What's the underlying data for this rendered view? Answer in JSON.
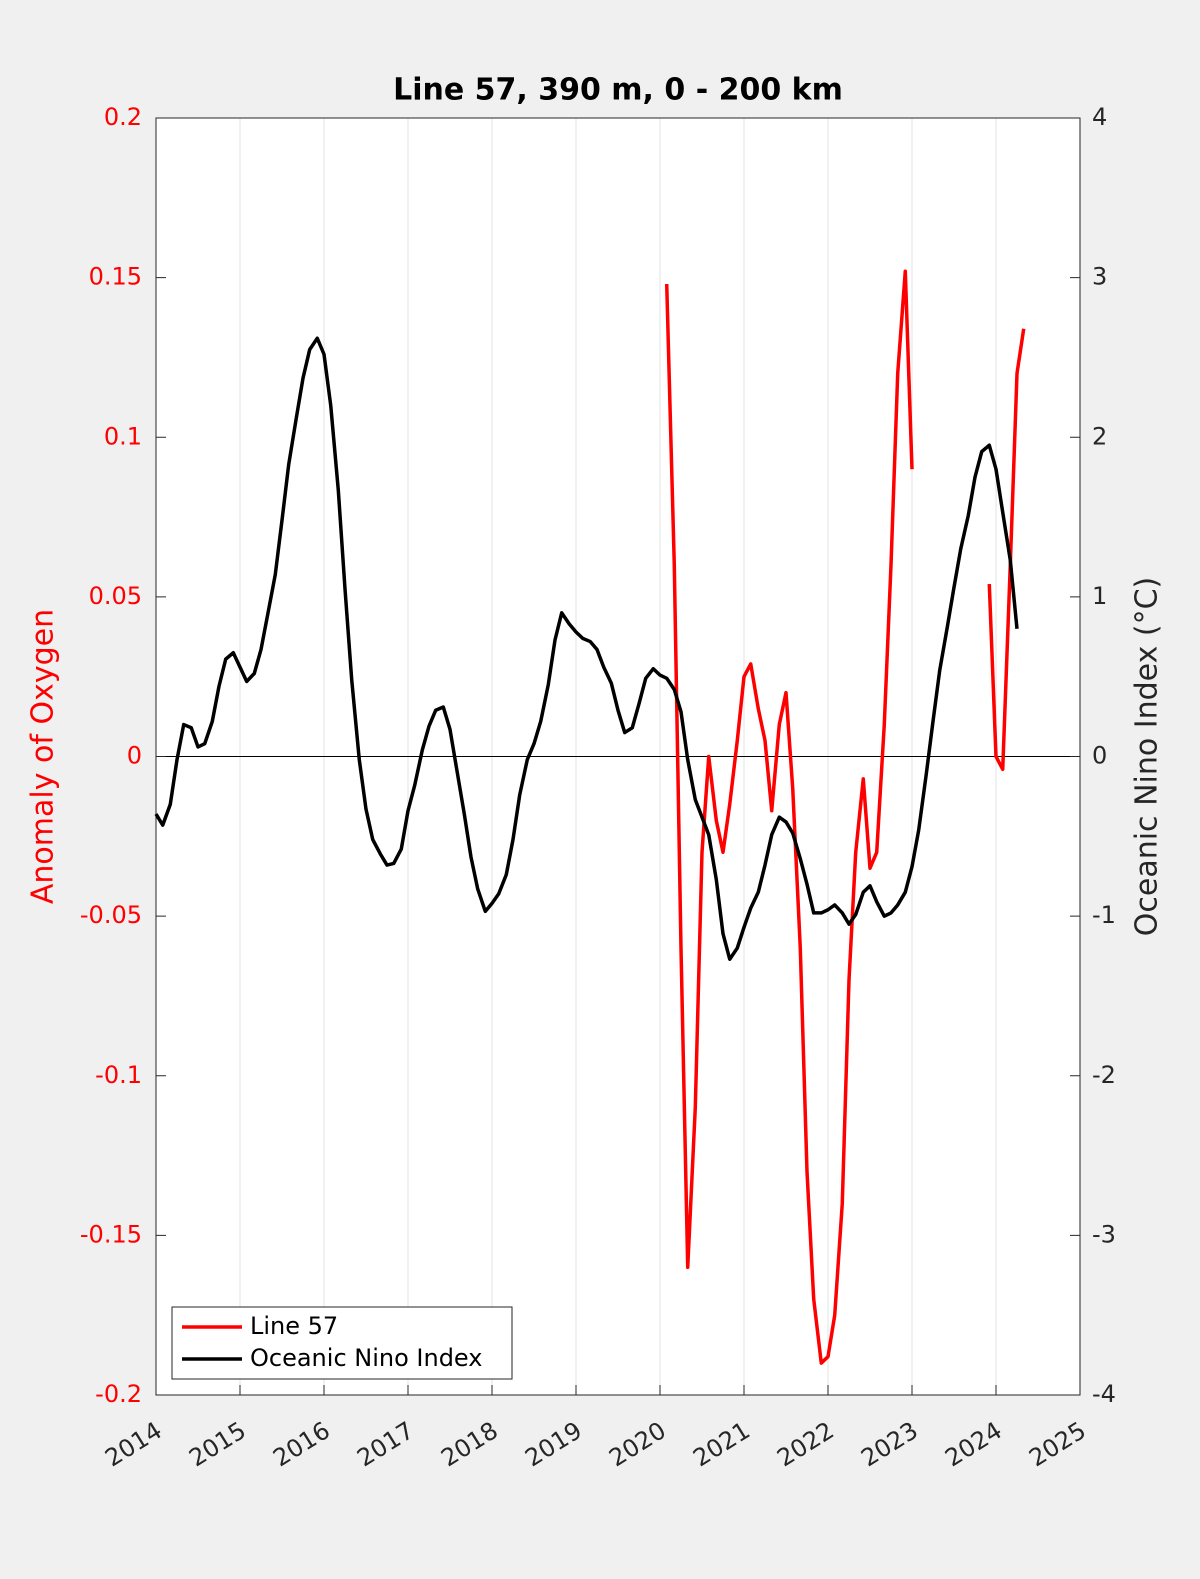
{
  "chart_data": {
    "type": "line",
    "title": "Line 57, 390 m, 0 - 200 km",
    "ylabel": "Anomaly of Oxygen",
    "y2label": "Oceanic Nino Index (°C)",
    "xlim": [
      2014,
      2025
    ],
    "xticks": [
      2014,
      2015,
      2016,
      2017,
      2018,
      2019,
      2020,
      2021,
      2022,
      2023,
      2024,
      2025
    ],
    "ylim": [
      -0.2,
      0.2
    ],
    "yticks": [
      -0.2,
      -0.15,
      -0.1,
      -0.05,
      0,
      0.05,
      0.1,
      0.15,
      0.2
    ],
    "y2lim": [
      -4,
      4
    ],
    "y2ticks": [
      -4,
      -3,
      -2,
      -1,
      0,
      1,
      2,
      3,
      4
    ],
    "grid": "x",
    "zero_line": true,
    "legend": "southwest",
    "ylabel_color": "#ff0000",
    "x": [
      2014.0,
      2014.08,
      2014.17,
      2014.25,
      2014.33,
      2014.42,
      2014.5,
      2014.58,
      2014.67,
      2014.75,
      2014.83,
      2014.92,
      2015.0,
      2015.08,
      2015.17,
      2015.25,
      2015.33,
      2015.42,
      2015.5,
      2015.58,
      2015.67,
      2015.75,
      2015.83,
      2015.92,
      2016.0,
      2016.08,
      2016.17,
      2016.25,
      2016.33,
      2016.42,
      2016.5,
      2016.58,
      2016.67,
      2016.75,
      2016.83,
      2016.92,
      2017.0,
      2017.08,
      2017.17,
      2017.25,
      2017.33,
      2017.42,
      2017.5,
      2017.58,
      2017.67,
      2017.75,
      2017.83,
      2017.92,
      2018.0,
      2018.08,
      2018.17,
      2018.25,
      2018.33,
      2018.42,
      2018.5,
      2018.58,
      2018.67,
      2018.75,
      2018.83,
      2018.92,
      2019.0,
      2019.08,
      2019.17,
      2019.25,
      2019.33,
      2019.42,
      2019.5,
      2019.58,
      2019.67,
      2019.75,
      2019.83,
      2019.92,
      2020.0,
      2020.08,
      2020.17,
      2020.25,
      2020.33,
      2020.42,
      2020.5,
      2020.58,
      2020.67,
      2020.75,
      2020.83,
      2020.92,
      2021.0,
      2021.08,
      2021.17,
      2021.25,
      2021.33,
      2021.42,
      2021.5,
      2021.58,
      2021.67,
      2021.75,
      2021.83,
      2021.92,
      2022.0,
      2022.08,
      2022.17,
      2022.25,
      2022.33,
      2022.42,
      2022.5,
      2022.58,
      2022.67,
      2022.75,
      2022.83,
      2022.92,
      2023.0,
      2023.08,
      2023.17,
      2023.25,
      2023.33,
      2023.42,
      2023.5,
      2023.58,
      2023.67,
      2023.75,
      2023.83,
      2023.92,
      2024.0,
      2024.08,
      2024.17,
      2024.25,
      2024.33
    ],
    "series": [
      {
        "name": "Line 57",
        "color": "#ff0000",
        "axis": "y",
        "values": [
          null,
          null,
          null,
          null,
          null,
          null,
          null,
          null,
          null,
          null,
          null,
          null,
          null,
          null,
          null,
          null,
          null,
          null,
          null,
          null,
          null,
          null,
          null,
          null,
          null,
          null,
          null,
          null,
          null,
          null,
          null,
          null,
          null,
          null,
          null,
          null,
          null,
          null,
          null,
          null,
          null,
          null,
          null,
          null,
          null,
          null,
          null,
          null,
          null,
          null,
          null,
          null,
          null,
          null,
          null,
          null,
          null,
          null,
          null,
          null,
          null,
          null,
          null,
          null,
          null,
          null,
          null,
          null,
          null,
          null,
          null,
          null,
          null,
          0.148,
          0.06,
          -0.06,
          -0.16,
          -0.11,
          -0.03,
          0.0,
          -0.02,
          -0.03,
          -0.015,
          0.005,
          0.025,
          0.029,
          0.015,
          0.005,
          -0.017,
          0.01,
          0.02,
          -0.01,
          -0.06,
          -0.13,
          -0.17,
          -0.19,
          -0.188,
          -0.175,
          -0.14,
          -0.07,
          -0.03,
          -0.007,
          -0.035,
          -0.03,
          0.01,
          0.06,
          0.12,
          0.152,
          0.09,
          null,
          null,
          null,
          null,
          null,
          null,
          null,
          null,
          null,
          null,
          0.054,
          0.0,
          -0.004,
          0.06,
          0.12,
          0.134
        ]
      },
      {
        "name": "Oceanic Nino Index",
        "color": "#000000",
        "axis": "y2",
        "values": [
          -0.36,
          -0.43,
          -0.3,
          -0.02,
          0.2,
          0.18,
          0.06,
          0.08,
          0.22,
          0.44,
          0.61,
          0.65,
          0.56,
          0.47,
          0.52,
          0.67,
          0.89,
          1.14,
          1.48,
          1.83,
          2.12,
          2.37,
          2.55,
          2.62,
          2.52,
          2.2,
          1.67,
          1.05,
          0.48,
          -0.02,
          -0.33,
          -0.52,
          -0.61,
          -0.68,
          -0.67,
          -0.58,
          -0.34,
          -0.18,
          0.04,
          0.19,
          0.29,
          0.31,
          0.17,
          -0.08,
          -0.36,
          -0.63,
          -0.83,
          -0.97,
          -0.92,
          -0.86,
          -0.74,
          -0.52,
          -0.24,
          -0.02,
          0.08,
          0.22,
          0.45,
          0.73,
          0.9,
          0.83,
          0.78,
          0.74,
          0.72,
          0.67,
          0.56,
          0.46,
          0.29,
          0.15,
          0.18,
          0.33,
          0.49,
          0.55,
          0.51,
          0.49,
          0.42,
          0.28,
          -0.02,
          -0.27,
          -0.38,
          -0.49,
          -0.77,
          -1.11,
          -1.27,
          -1.2,
          -1.07,
          -0.95,
          -0.85,
          -0.68,
          -0.49,
          -0.38,
          -0.41,
          -0.48,
          -0.64,
          -0.8,
          -0.98,
          -0.98,
          -0.96,
          -0.93,
          -0.98,
          -1.05,
          -0.99,
          -0.85,
          -0.81,
          -0.91,
          -1.0,
          -0.98,
          -0.93,
          -0.85,
          -0.69,
          -0.46,
          -0.11,
          0.22,
          0.54,
          0.81,
          1.06,
          1.3,
          1.51,
          1.75,
          1.91,
          1.95,
          1.8,
          1.53,
          1.23,
          0.8,
          null
        ]
      }
    ]
  }
}
